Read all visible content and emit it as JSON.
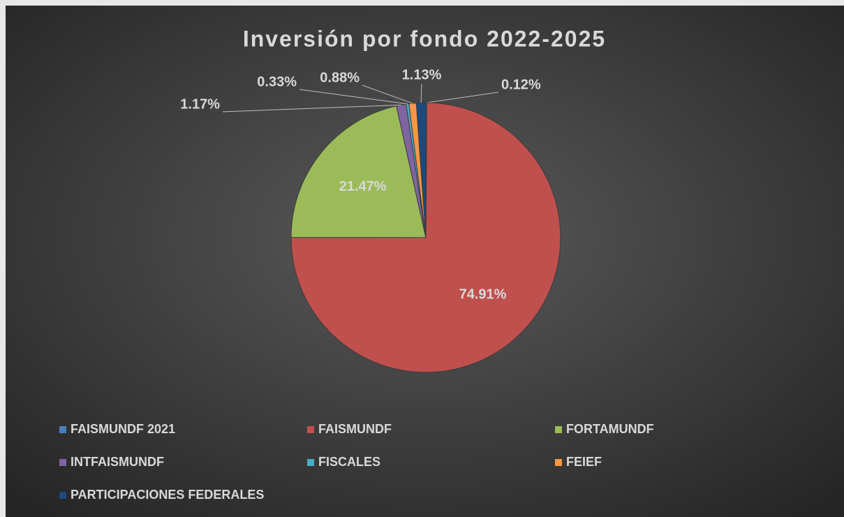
{
  "chart_data": {
    "type": "pie",
    "title": "Inversión por fondo 2022-2025",
    "categories": [
      "FAISMUNDF 2021",
      "FAISMUNDF",
      "FORTAMUNDF",
      "INTFAISMUNDF",
      "FISCALES",
      "FEIEF",
      "PARTICIPACIONES FEDERALES"
    ],
    "values": [
      0.12,
      74.91,
      21.47,
      1.17,
      0.33,
      0.88,
      1.13
    ],
    "value_labels": [
      "0.12%",
      "74.91%",
      "21.47%",
      "1.17%",
      "0.33%",
      "0.88%",
      "1.13%"
    ],
    "colors": [
      "#4a7ebb",
      "#c0504d",
      "#9bbb59",
      "#8064a2",
      "#4bacc6",
      "#f79646",
      "#1f497d"
    ],
    "legend": "bottom"
  }
}
